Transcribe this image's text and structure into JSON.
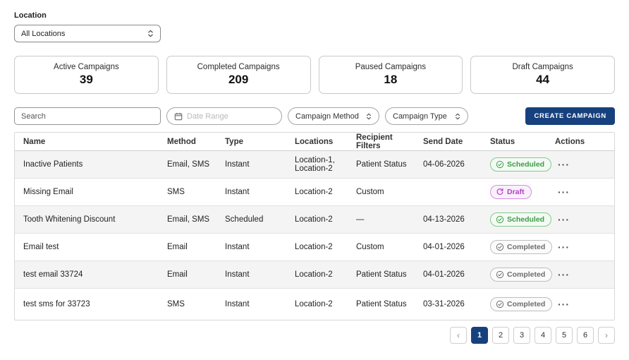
{
  "location_filter": {
    "label": "Location",
    "value": "All Locations"
  },
  "stats": [
    {
      "label": "Active Campaigns",
      "value": "39"
    },
    {
      "label": "Completed Campaigns",
      "value": "209"
    },
    {
      "label": "Paused Campaigns",
      "value": "18"
    },
    {
      "label": "Draft Campaigns",
      "value": "44"
    }
  ],
  "filters": {
    "search_placeholder": "Search",
    "date_range_placeholder": "Date Range",
    "campaign_method_label": "Campaign Method",
    "campaign_type_label": "Campaign Type",
    "create_button_label": "CREATE CAMPAIGN"
  },
  "table": {
    "columns": [
      "Name",
      "Method",
      "Type",
      "Locations",
      "Recipient Filters",
      "Send Date",
      "Status",
      "Actions"
    ],
    "rows": [
      {
        "name": "Inactive Patients",
        "method": "Email, SMS",
        "type": "Instant",
        "locations": "Location-1, Location-2",
        "recipient_filters": "Patient Status",
        "send_date": "04-06-2026",
        "status": "Scheduled"
      },
      {
        "name": "Missing Email",
        "method": "SMS",
        "type": "Instant",
        "locations": "Location-2",
        "recipient_filters": "Custom",
        "send_date": "",
        "status": "Draft"
      },
      {
        "name": "Tooth Whitening Discount",
        "method": "Email, SMS",
        "type": "Scheduled",
        "locations": "Location-2",
        "recipient_filters": "—",
        "send_date": "04-13-2026",
        "status": "Scheduled"
      },
      {
        "name": "Email test",
        "method": "Email",
        "type": "Instant",
        "locations": "Location-2",
        "recipient_filters": "Custom",
        "send_date": "04-01-2026",
        "status": "Completed"
      },
      {
        "name": "test email 33724",
        "method": "Email",
        "type": "Instant",
        "locations": "Location-2",
        "recipient_filters": "Patient Status",
        "send_date": "04-01-2026",
        "status": "Completed"
      },
      {
        "name": "test sms for 33723",
        "method": "SMS",
        "type": "Instant",
        "locations": "Location-2",
        "recipient_filters": "Patient Status",
        "send_date": "03-31-2026",
        "status": "Completed"
      }
    ],
    "actions_ellipsis": "···"
  },
  "status_styles": {
    "Scheduled": {
      "text": "#3d9c47",
      "border": "#83c98a",
      "bg": "#f3faf4",
      "icon": "check-circle-icon"
    },
    "Draft": {
      "text": "#b340c6",
      "border": "#d28fe0",
      "bg": "#faf0fc",
      "icon": "sync-icon"
    },
    "Completed": {
      "text": "#6d6d6d",
      "border": "#bdbdbd",
      "bg": "#fbfbfb",
      "icon": "check-circle-icon"
    }
  },
  "pagination": {
    "prev": "‹",
    "next": "›",
    "pages": [
      "1",
      "2",
      "3",
      "4",
      "5",
      "6"
    ],
    "active": "1"
  },
  "colors": {
    "primary": "#17417e",
    "stripe": "#f4f4f4",
    "table_border": "#d8d8d8"
  }
}
